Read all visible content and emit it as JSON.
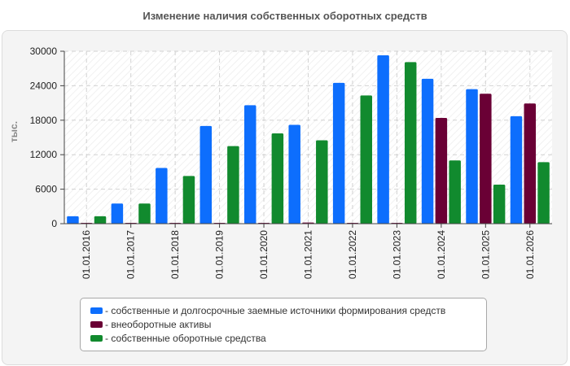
{
  "chart_data": {
    "type": "bar",
    "title": "Изменение наличия собственных оборотных средств",
    "ylabel": "тыс.",
    "xlabel": "",
    "ylim": [
      0,
      30000
    ],
    "yticks": [
      "0",
      "6000",
      "12000",
      "18000",
      "24000",
      "30000"
    ],
    "grid": true,
    "legend_position": "bottom",
    "categories": [
      "01.01.2016",
      "01.01.2017",
      "01.01.2018",
      "01.01.2019",
      "01.01.2020",
      "01.01.2021",
      "01.01.2022",
      "01.01.2023",
      "01.01.2024",
      "01.01.2025",
      "01.01.2026"
    ],
    "series": [
      {
        "name": "собственные и долгосрочные заемные источники формирования средств",
        "color": "#0d6efd",
        "values": [
          1300,
          3500,
          9700,
          17000,
          20600,
          17200,
          24500,
          29300,
          25200,
          23400,
          18700
        ]
      },
      {
        "name": "внеоборотные активы",
        "color": "#6a0035",
        "values": [
          100,
          100,
          100,
          100,
          100,
          200,
          100,
          100,
          18400,
          22600,
          20900
        ]
      },
      {
        "name": "собственные оборотные средства",
        "color": "#118a2e",
        "values": [
          1300,
          3500,
          8300,
          13500,
          15700,
          14500,
          22300,
          28100,
          11000,
          6800,
          10700
        ]
      }
    ]
  }
}
